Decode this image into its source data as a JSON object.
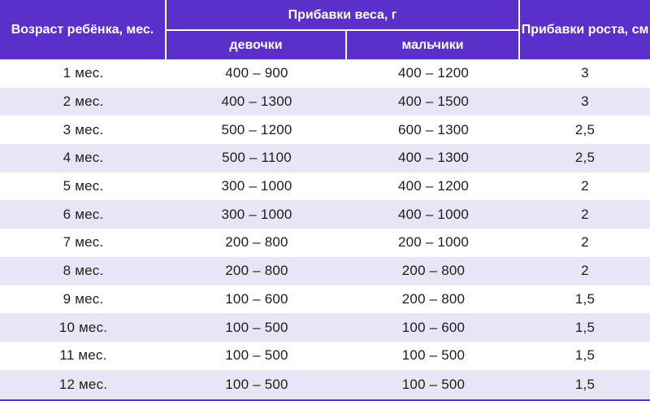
{
  "header": {
    "age": "Возраст ребёнка, мес.",
    "weight_gain": "Прибавки веса, г",
    "girls": "девочки",
    "boys": "мальчики",
    "height_gain": "Прибавки роста, см"
  },
  "colors": {
    "header_bg": "#5b2fc9",
    "alt_row_bg": "#e9e5f7",
    "text": "#1d1d1d"
  },
  "rows": [
    {
      "age": "1 мес.",
      "girls": "400 – 900",
      "boys": "400 – 1200",
      "height": "3"
    },
    {
      "age": "2 мес.",
      "girls": "400 – 1300",
      "boys": "400 – 1500",
      "height": "3"
    },
    {
      "age": "3 мес.",
      "girls": "500 – 1200",
      "boys": "600 – 1300",
      "height": "2,5"
    },
    {
      "age": "4 мес.",
      "girls": "500 – 1100",
      "boys": "400 – 1300",
      "height": "2,5"
    },
    {
      "age": "5 мес.",
      "girls": "300 – 1000",
      "boys": "400 – 1200",
      "height": "2"
    },
    {
      "age": "6 мес.",
      "girls": "300 – 1000",
      "boys": "400 – 1000",
      "height": "2"
    },
    {
      "age": "7 мес.",
      "girls": "200 – 800",
      "boys": "200 – 1000",
      "height": "2"
    },
    {
      "age": "8 мес.",
      "girls": "200 – 800",
      "boys": "200 – 800",
      "height": "2"
    },
    {
      "age": "9 мес.",
      "girls": "100 – 600",
      "boys": "200 – 800",
      "height": "1,5"
    },
    {
      "age": "10 мес.",
      "girls": "100 – 500",
      "boys": "100 – 600",
      "height": "1,5"
    },
    {
      "age": "11 мес.",
      "girls": "100 – 500",
      "boys": "100 – 500",
      "height": "1,5"
    },
    {
      "age": "12 мес.",
      "girls": "100 – 500",
      "boys": "100 – 500",
      "height": "1,5"
    }
  ]
}
